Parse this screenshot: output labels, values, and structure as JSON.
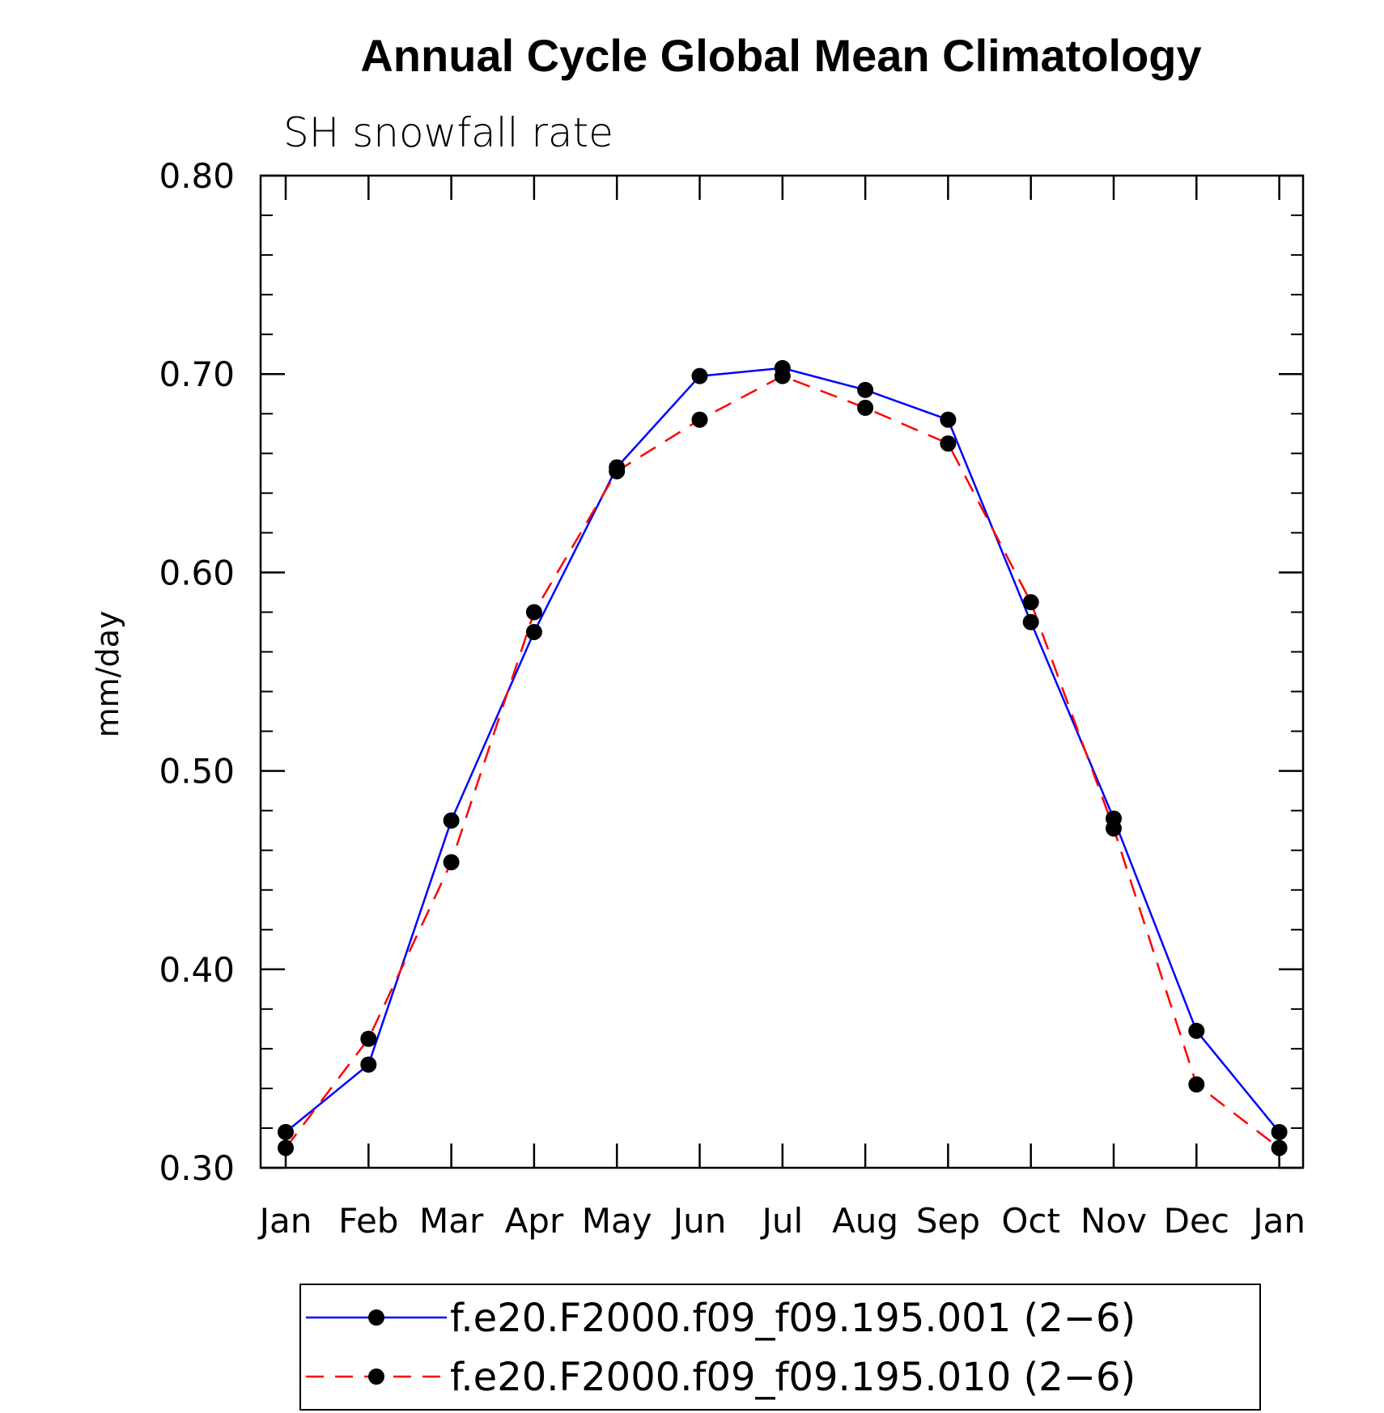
{
  "chart_data": {
    "type": "line",
    "title": "Annual Cycle Global Mean Climatology",
    "subtitle": "SH snowfall rate",
    "ylabel": "mm/day",
    "xlabel": "",
    "categories": [
      "Jan",
      "Feb",
      "Mar",
      "Apr",
      "May",
      "Jun",
      "Jul",
      "Aug",
      "Sep",
      "Oct",
      "Nov",
      "Dec",
      "Jan"
    ],
    "ylim": [
      0.3,
      0.8
    ],
    "yticks": [
      "0.30",
      "0.40",
      "0.50",
      "0.60",
      "0.70",
      "0.80"
    ],
    "grid": false,
    "legend_position": "bottom",
    "series": [
      {
        "name": "f.e20.F2000.f09_f09.195.001 (2−6)",
        "color": "#0000ff",
        "style": "solid",
        "marker": "filled-circle",
        "values": [
          0.318,
          0.352,
          0.475,
          0.57,
          0.653,
          0.699,
          0.703,
          0.692,
          0.677,
          0.575,
          0.476,
          0.369,
          0.318
        ]
      },
      {
        "name": "f.e20.F2000.f09_f09.195.010 (2−6)",
        "color": "#ff0000",
        "style": "dashed",
        "marker": "filled-circle",
        "values": [
          0.31,
          0.365,
          0.454,
          0.58,
          0.651,
          0.677,
          0.699,
          0.683,
          0.665,
          0.585,
          0.471,
          0.342,
          0.31
        ]
      }
    ]
  }
}
